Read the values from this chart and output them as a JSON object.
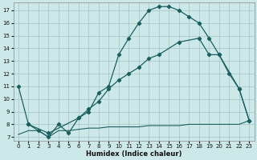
{
  "xlabel": "Humidex (Indice chaleur)",
  "bg_color": "#cde8e8",
  "grid_color": "#adc8c8",
  "line_color": "#1a6060",
  "xlim": [
    -0.5,
    23.5
  ],
  "ylim": [
    6.7,
    17.6
  ],
  "xticks": [
    0,
    1,
    2,
    3,
    4,
    5,
    6,
    7,
    8,
    9,
    10,
    11,
    12,
    13,
    14,
    15,
    16,
    17,
    18,
    19,
    20,
    21,
    22,
    23
  ],
  "yticks": [
    7,
    8,
    9,
    10,
    11,
    12,
    13,
    14,
    15,
    16,
    17
  ],
  "curve1_x": [
    0,
    1,
    2,
    3,
    4,
    5,
    6,
    7,
    8,
    9,
    10,
    11,
    12,
    13,
    14,
    15,
    16,
    17,
    18,
    19,
    20,
    21,
    22,
    23
  ],
  "curve1_y": [
    11.0,
    8.0,
    7.5,
    7.0,
    8.0,
    7.3,
    8.5,
    9.0,
    10.5,
    11.0,
    13.5,
    14.8,
    16.0,
    17.0,
    17.3,
    17.3,
    17.0,
    16.5,
    16.0,
    14.8,
    13.5,
    12.0,
    10.8,
    8.3
  ],
  "curve2_x": [
    1,
    3,
    6,
    7,
    8,
    9,
    10,
    11,
    12,
    13,
    14,
    16,
    18,
    19,
    20,
    22,
    23
  ],
  "curve2_y": [
    8.0,
    7.3,
    8.5,
    9.2,
    9.8,
    10.8,
    11.5,
    12.0,
    12.5,
    13.2,
    13.5,
    14.5,
    14.8,
    13.5,
    13.5,
    10.8,
    8.3
  ],
  "curve3_x": [
    0,
    1,
    2,
    3,
    4,
    5,
    6,
    7,
    8,
    9,
    10,
    11,
    12,
    13,
    14,
    15,
    16,
    17,
    18,
    19,
    20,
    21,
    22,
    23
  ],
  "curve3_y": [
    7.2,
    7.5,
    7.5,
    7.0,
    7.5,
    7.5,
    7.6,
    7.7,
    7.7,
    7.8,
    7.8,
    7.8,
    7.8,
    7.9,
    7.9,
    7.9,
    7.9,
    8.0,
    8.0,
    8.0,
    8.0,
    8.0,
    8.0,
    8.3
  ]
}
